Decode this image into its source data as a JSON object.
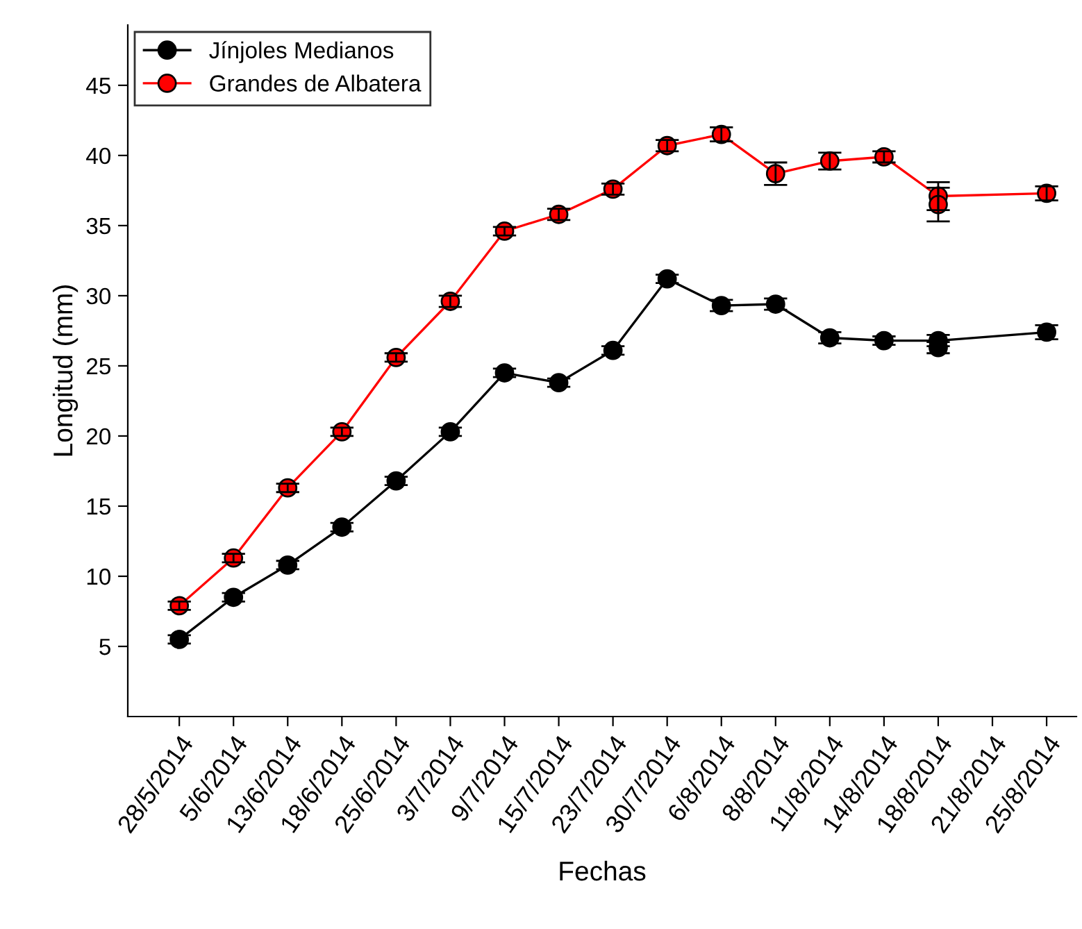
{
  "chart_data": {
    "type": "line",
    "xlabel": "Fechas",
    "ylabel": "Longitud (mm)",
    "categories": [
      "28/5/2014",
      "5/6/2014",
      "13/6/2014",
      "18/6/2014",
      "25/6/2014",
      "3/7/2014",
      "9/7/2014",
      "15/7/2014",
      "23/7/2014",
      "30/7/2014",
      "6/8/2014",
      "8/8/2014",
      "11/8/2014",
      "14/8/2014",
      "18/8/2014",
      "21/8/2014",
      "25/8/2014"
    ],
    "series": [
      {
        "name": "Jínjoles Medianos",
        "color": "#000000",
        "values": [
          5.5,
          8.5,
          10.8,
          13.5,
          16.8,
          20.3,
          24.5,
          23.8,
          26.1,
          31.2,
          29.3,
          29.4,
          27.0,
          26.8,
          26.8,
          null,
          27.4
        ],
        "errors": [
          0.3,
          0.3,
          0.3,
          0.3,
          0.3,
          0.3,
          0.3,
          0.3,
          0.3,
          0.3,
          0.4,
          0.4,
          0.4,
          0.3,
          0.4,
          null,
          0.5
        ]
      },
      {
        "name": "Grandes de Albatera",
        "color": "#ff0000",
        "values": [
          7.9,
          11.3,
          16.3,
          20.3,
          25.6,
          29.6,
          34.6,
          35.8,
          37.6,
          40.7,
          41.5,
          38.7,
          39.6,
          39.9,
          37.1,
          null,
          37.3
        ],
        "errors": [
          0.3,
          0.3,
          0.3,
          0.3,
          0.3,
          0.4,
          0.3,
          0.4,
          0.4,
          0.4,
          0.5,
          0.8,
          0.6,
          0.4,
          1.0,
          null,
          0.5
        ]
      },
      {
        "type": "scatter",
        "color": "#000000",
        "x": [
          "18/8/2014"
        ],
        "values": [
          26.3
        ],
        "errors": [
          0.4
        ]
      },
      {
        "type": "scatter",
        "color": "#ff0000",
        "x": [
          "18/8/2014"
        ],
        "values": [
          36.5
        ],
        "errors": [
          1.2
        ]
      }
    ],
    "ylim": [
      0,
      49.3
    ],
    "yticks": [
      5,
      10,
      15,
      20,
      25,
      30,
      35,
      40,
      45
    ],
    "legend": "top left",
    "marker": "circle",
    "line_style": "solid"
  }
}
